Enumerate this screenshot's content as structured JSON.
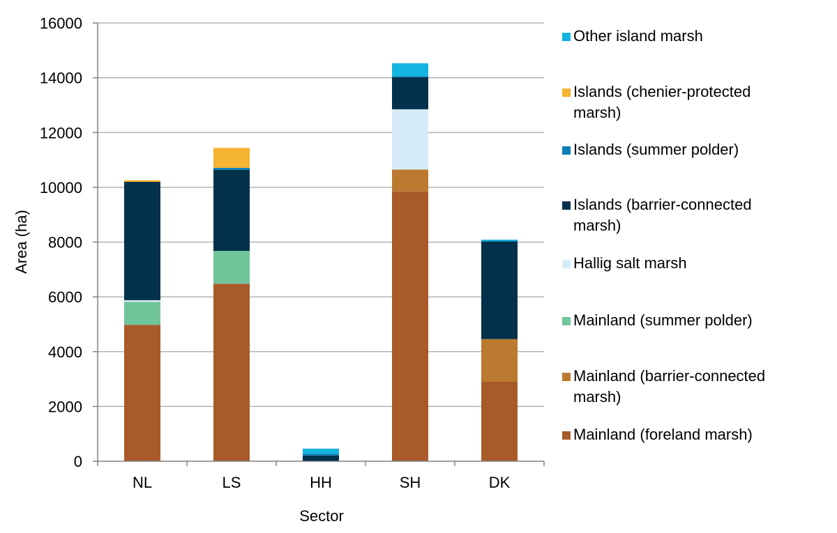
{
  "chart_data": {
    "type": "bar",
    "stacked": true,
    "title": "",
    "xlabel": "Sector",
    "ylabel": "Area (ha)",
    "ylim": [
      0,
      16000
    ],
    "yticks": [
      0,
      2000,
      4000,
      6000,
      8000,
      10000,
      12000,
      14000,
      16000
    ],
    "grid": true,
    "legend_position": "right",
    "categories": [
      "NL",
      "LS",
      "HH",
      "SH",
      "DK"
    ],
    "series": [
      {
        "name": "Mainland (foreland marsh)",
        "color": "#a85a2a",
        "values": [
          4980,
          6480,
          0,
          9850,
          2900
        ]
      },
      {
        "name": "Mainland (barrier-connected marsh)",
        "color": "#bc7a30",
        "values": [
          0,
          0,
          0,
          800,
          1560
        ]
      },
      {
        "name": "Mainland (summer polder)",
        "color": "#70c49a",
        "values": [
          840,
          1200,
          0,
          0,
          0
        ]
      },
      {
        "name": "Hallig salt marsh",
        "color": "#d6ebf8",
        "values": [
          60,
          0,
          0,
          2200,
          0
        ]
      },
      {
        "name": "Islands (barrier-connected marsh)",
        "color": "#03304b",
        "values": [
          4320,
          2960,
          210,
          1180,
          3570
        ]
      },
      {
        "name": "Islands (summer polder)",
        "color": "#0a7fb8",
        "values": [
          0,
          70,
          60,
          0,
          0
        ]
      },
      {
        "name": "Islands (chenier-protected marsh)",
        "color": "#f5b431",
        "values": [
          60,
          730,
          0,
          0,
          0
        ]
      },
      {
        "name": "Other island marsh",
        "color": "#14b4e0",
        "values": [
          0,
          0,
          190,
          500,
          60
        ]
      }
    ]
  }
}
